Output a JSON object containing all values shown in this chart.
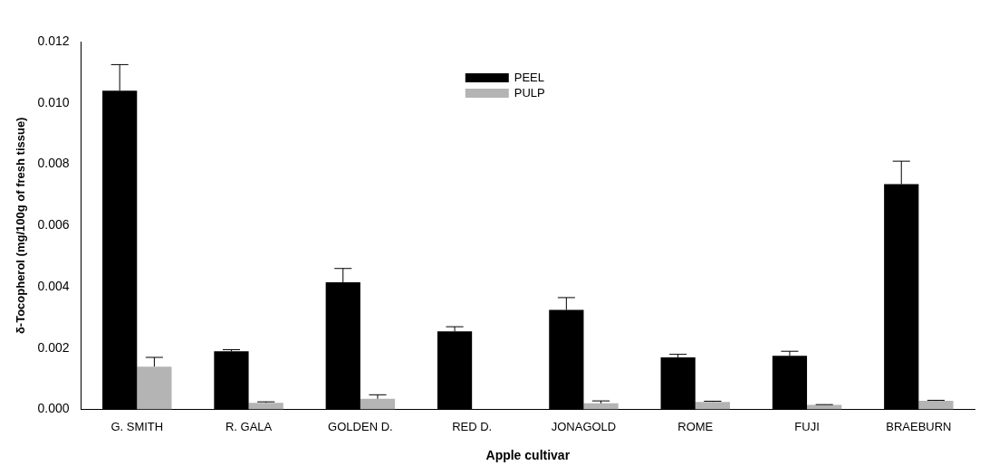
{
  "chart_data": {
    "type": "bar",
    "xlabel": "Apple cultivar",
    "ylabel": "δ-Tocopherol (mg/100g of fresh tissue)",
    "categories": [
      "G. SMITH",
      "R. GALA",
      "GOLDEN D.",
      "RED D.",
      "JONAGOLD",
      "ROME",
      "FUJI",
      "BRAEBURN"
    ],
    "series": [
      {
        "name": "PEEL",
        "color": "#000000",
        "values": [
          0.0104,
          0.0019,
          0.00415,
          0.00255,
          0.00325,
          0.0017,
          0.00175,
          0.00735
        ],
        "errors": [
          [
            0.0104,
            0.01125
          ],
          [
            0.0019,
            0.00195
          ],
          [
            0.00415,
            0.0046
          ],
          [
            0.00255,
            0.0027
          ],
          [
            0.00325,
            0.00365
          ],
          [
            0.0017,
            0.0018
          ],
          [
            0.00175,
            0.0019
          ],
          [
            0.00735,
            0.0081
          ]
        ]
      },
      {
        "name": "PULP",
        "color": "#b4b4b4",
        "values": [
          0.0014,
          0.00022,
          0.00035,
          null,
          0.0002,
          0.00025,
          0.00015,
          0.00028
        ],
        "errors": [
          [
            0.0014,
            0.0017
          ],
          [
            0.00022,
            0.00025
          ],
          [
            0.00035,
            0.00048
          ],
          null,
          [
            0.0002,
            0.00028
          ],
          [
            0.00025,
            0.00027
          ],
          [
            0.00015,
            0.00016
          ],
          [
            0.00028,
            0.0003
          ]
        ]
      }
    ],
    "ylim": [
      0,
      0.012
    ],
    "yticks": [
      {
        "value": 0,
        "label": "0.000"
      },
      0.002,
      0.004,
      0.006,
      0.008,
      {
        "value": 0.01,
        "label": "0.010"
      },
      0.012
    ],
    "grid": false,
    "legend": "top"
  }
}
